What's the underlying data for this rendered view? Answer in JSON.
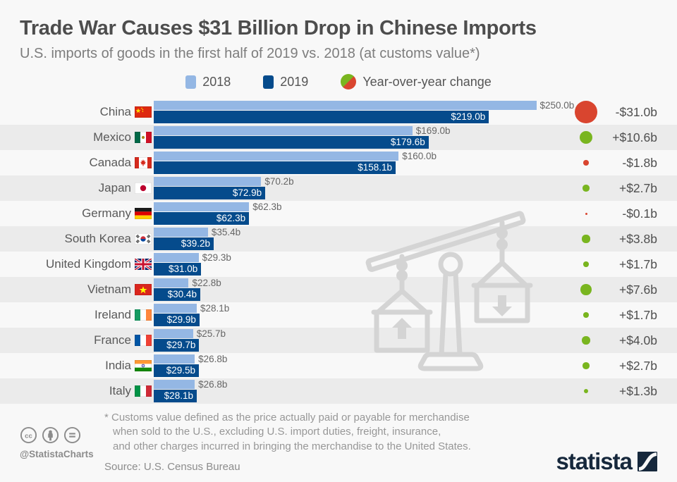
{
  "title": "Trade War Causes $31 Billion Drop in Chinese Imports",
  "subtitle": "U.S. imports of goods in the first half of 2019 vs. 2018 (at customs value*)",
  "legend": {
    "label_2018": "2018",
    "label_2019": "2019",
    "label_change": "Year-over-year change"
  },
  "colors": {
    "bar_2018": "#94b7e4",
    "bar_2019": "#054b8c",
    "positive": "#79b51f",
    "negative": "#d9452f",
    "stripe": "#ebebeb",
    "background": "#f8f8f8",
    "brand_navy": "#16283c"
  },
  "rows": [
    {
      "country": "China",
      "flag": "cn",
      "value_2018": 250.0,
      "label_2018": "$250.0b",
      "value_2019": 219.0,
      "label_2019": "$219.0b",
      "change": -31.0,
      "change_label": "-$31.0b"
    },
    {
      "country": "Mexico",
      "flag": "mx",
      "value_2018": 169.0,
      "label_2018": "$169.0b",
      "value_2019": 179.6,
      "label_2019": "$179.6b",
      "change": 10.6,
      "change_label": "+$10.6b"
    },
    {
      "country": "Canada",
      "flag": "ca",
      "value_2018": 160.0,
      "label_2018": "$160.0b",
      "value_2019": 158.1,
      "label_2019": "$158.1b",
      "change": -1.8,
      "change_label": "-$1.8b"
    },
    {
      "country": "Japan",
      "flag": "jp",
      "value_2018": 70.2,
      "label_2018": "$70.2b",
      "value_2019": 72.9,
      "label_2019": "$72.9b",
      "change": 2.7,
      "change_label": "+$2.7b"
    },
    {
      "country": "Germany",
      "flag": "de",
      "value_2018": 62.3,
      "label_2018": "$62.3b",
      "value_2019": 62.3,
      "label_2019": "$62.3b",
      "change": -0.1,
      "change_label": "-$0.1b"
    },
    {
      "country": "South Korea",
      "flag": "kr",
      "value_2018": 35.4,
      "label_2018": "$35.4b",
      "value_2019": 39.2,
      "label_2019": "$39.2b",
      "change": 3.8,
      "change_label": "+$3.8b"
    },
    {
      "country": "United Kingdom",
      "flag": "gb",
      "value_2018": 29.3,
      "label_2018": "$29.3b",
      "value_2019": 31.0,
      "label_2019": "$31.0b",
      "change": 1.7,
      "change_label": "+$1.7b"
    },
    {
      "country": "Vietnam",
      "flag": "vn",
      "value_2018": 22.8,
      "label_2018": "$22.8b",
      "value_2019": 30.4,
      "label_2019": "$30.4b",
      "change": 7.6,
      "change_label": "+$7.6b"
    },
    {
      "country": "Ireland",
      "flag": "ie",
      "value_2018": 28.1,
      "label_2018": "$28.1b",
      "value_2019": 29.9,
      "label_2019": "$29.9b",
      "change": 1.7,
      "change_label": "+$1.7b"
    },
    {
      "country": "France",
      "flag": "fr",
      "value_2018": 25.7,
      "label_2018": "$25.7b",
      "value_2019": 29.7,
      "label_2019": "$29.7b",
      "change": 4.0,
      "change_label": "+$4.0b"
    },
    {
      "country": "India",
      "flag": "in",
      "value_2018": 26.8,
      "label_2018": "$26.8b",
      "value_2019": 29.5,
      "label_2019": "$29.5b",
      "change": 2.7,
      "change_label": "+$2.7b"
    },
    {
      "country": "Italy",
      "flag": "it",
      "value_2018": 26.8,
      "label_2018": "$26.8b",
      "value_2019": 28.1,
      "label_2019": "$28.1b",
      "change": 1.3,
      "change_label": "+$1.3b"
    }
  ],
  "chart_data": {
    "type": "bar",
    "orientation": "horizontal",
    "title": "Trade War Causes $31 Billion Drop in Chinese Imports",
    "subtitle": "U.S. imports of goods in the first half of 2019 vs. 2018 (at customs value*)",
    "unit": "billion USD",
    "xlim": [
      0,
      250
    ],
    "categories": [
      "China",
      "Mexico",
      "Canada",
      "Japan",
      "Germany",
      "South Korea",
      "United Kingdom",
      "Vietnam",
      "Ireland",
      "France",
      "India",
      "Italy"
    ],
    "series": [
      {
        "name": "2018",
        "values": [
          250.0,
          169.0,
          160.0,
          70.2,
          62.3,
          35.4,
          29.3,
          22.8,
          28.1,
          25.7,
          26.8,
          26.8
        ]
      },
      {
        "name": "2019",
        "values": [
          219.0,
          179.6,
          158.1,
          72.9,
          62.3,
          39.2,
          31.0,
          30.4,
          29.9,
          29.7,
          29.5,
          28.1
        ]
      },
      {
        "name": "Year-over-year change",
        "values": [
          -31.0,
          10.6,
          -1.8,
          2.7,
          -0.1,
          3.8,
          1.7,
          7.6,
          1.7,
          4.0,
          2.7,
          1.3
        ]
      }
    ],
    "legend_position": "top",
    "grid": false
  },
  "footer": {
    "footnote": "* Customs value defined as the price actually paid or payable for merchandise\nwhen sold to the U.S., excluding U.S. import duties, freight, insurance,\nand other charges incurred in bringing the merchandise to the United States.",
    "source": "Source: U.S. Census Bureau",
    "credit": "@StatistaCharts",
    "brand": "statista"
  }
}
